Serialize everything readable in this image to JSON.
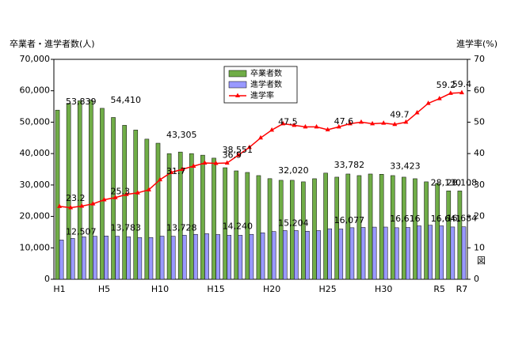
{
  "chart_data": {
    "type": "bar-line",
    "y_label": "卒業者・進学者数(人)",
    "y2_label": "進学率(%)",
    "note": "図",
    "categories": [
      "H1",
      null,
      null,
      null,
      "H5",
      null,
      null,
      null,
      null,
      "H10",
      null,
      null,
      null,
      null,
      "H15",
      null,
      null,
      null,
      null,
      "H20",
      null,
      null,
      null,
      null,
      "H25",
      null,
      null,
      null,
      null,
      "H30",
      null,
      null,
      null,
      null,
      "R5",
      null,
      "R7"
    ],
    "series": [
      {
        "name": "卒業者数",
        "color": "#70ad47",
        "kind": "bar",
        "values": [
          53839,
          56000,
          56800,
          57000,
          54410,
          51500,
          49000,
          47500,
          44600,
          43305,
          40000,
          40500,
          40000,
          39500,
          38551,
          35500,
          34500,
          34000,
          33000,
          32020,
          31500,
          31500,
          31000,
          32000,
          33782,
          32500,
          33500,
          33000,
          33500,
          33423,
          33000,
          32500,
          32000,
          31000,
          30500,
          28130,
          28108
        ],
        "value_labels": [
          "53,839",
          null,
          null,
          null,
          "54,410",
          null,
          null,
          null,
          null,
          "43,305",
          null,
          null,
          null,
          null,
          "38,551",
          null,
          null,
          null,
          null,
          "32,020",
          null,
          null,
          null,
          null,
          "33,782",
          null,
          null,
          null,
          null,
          "33,423",
          null,
          null,
          null,
          null,
          null,
          "28,130",
          "28,108"
        ]
      },
      {
        "name": "進学者数",
        "color": "#9999ff",
        "kind": "bar",
        "values": [
          12507,
          13000,
          13500,
          13700,
          13783,
          13700,
          13500,
          13300,
          13300,
          13728,
          13700,
          14000,
          14300,
          14500,
          14240,
          14000,
          14000,
          14300,
          14800,
          15204,
          15500,
          15500,
          15300,
          15500,
          16077,
          16000,
          16400,
          16500,
          16600,
          16616,
          16400,
          16500,
          17000,
          17200,
          17000,
          16641,
          16684
        ],
        "value_labels": [
          "12,507",
          null,
          null,
          null,
          "13,783",
          null,
          null,
          null,
          null,
          "13,728",
          null,
          null,
          null,
          null,
          "14,240",
          null,
          null,
          null,
          null,
          "15,204",
          null,
          null,
          null,
          null,
          "16,077",
          null,
          null,
          null,
          null,
          "16,616",
          null,
          null,
          null,
          null,
          null,
          "16,641",
          "16,684"
        ]
      },
      {
        "name": "進学率",
        "color": "#ff0000",
        "kind": "line",
        "axis": "y2",
        "values": [
          23.2,
          22.8,
          23.3,
          24.0,
          25.3,
          26.0,
          27.0,
          27.5,
          28.5,
          31.7,
          34.0,
          35.0,
          36.0,
          37.0,
          36.9,
          37.0,
          39.5,
          42.0,
          45.0,
          47.5,
          49.5,
          49.0,
          48.5,
          48.5,
          47.6,
          48.5,
          49.5,
          50.0,
          49.5,
          49.7,
          49.3,
          50.0,
          53.0,
          56.0,
          57.5,
          59.2,
          59.4
        ],
        "value_labels": [
          "23.2",
          null,
          null,
          null,
          "25.3",
          null,
          null,
          null,
          null,
          "31.7",
          null,
          null,
          null,
          null,
          "36.9",
          null,
          null,
          null,
          null,
          "47.5",
          null,
          null,
          null,
          null,
          "47.6",
          null,
          null,
          null,
          null,
          "49.7",
          null,
          null,
          null,
          null,
          null,
          "59.2",
          "59.4"
        ]
      }
    ],
    "ylim": [
      0,
      70000
    ],
    "yticks": [
      0,
      {
        "value": 10000,
        "label": "10,000"
      },
      {
        "value": 20000,
        "label": "20,000"
      },
      {
        "value": 30000,
        "label": "30,000"
      },
      {
        "value": 40000,
        "label": "40,000"
      },
      {
        "value": 50000,
        "label": "50,000"
      },
      {
        "value": 60000,
        "label": "60,000"
      },
      {
        "value": 70000,
        "label": "70,000"
      }
    ],
    "y2lim": [
      0,
      70
    ],
    "y2ticks": [
      0,
      10,
      20,
      30,
      40,
      50,
      60,
      70
    ],
    "legend": "top"
  }
}
